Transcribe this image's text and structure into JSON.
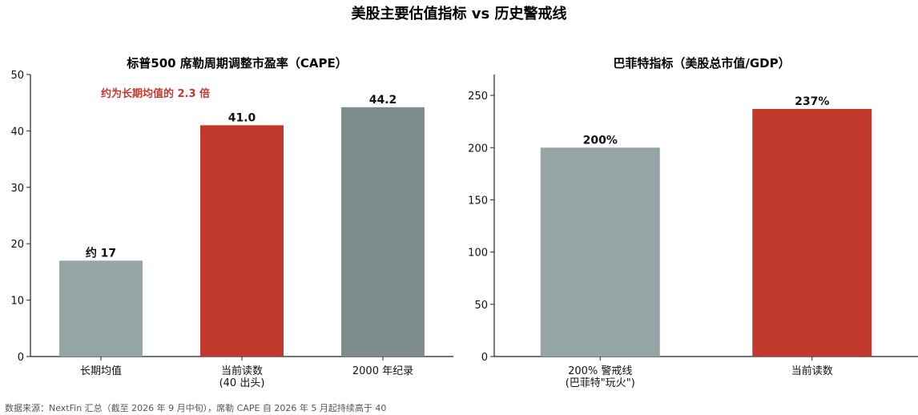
{
  "suptitle": "美股主要估值指标 vs 历史警戒线",
  "footer": "数据来源：NextFin 汇总（截至 2026 年 9 月中旬），席勒 CAPE 自 2026 年 5 月起持续高于 40",
  "chart_data": [
    {
      "type": "bar",
      "title": "标普500 席勒周期调整市盈率（CAPE）",
      "categories": [
        [
          "长期均值"
        ],
        [
          "当前读数",
          "(40 出头)"
        ],
        [
          "2000 年纪录"
        ]
      ],
      "values": [
        17,
        41.0,
        44.2
      ],
      "value_labels": [
        "约 17",
        "41.0",
        "44.2"
      ],
      "colors": [
        "#95a5a6",
        "#c0392b",
        "#7f8c8d"
      ],
      "ylim": [
        0,
        50
      ],
      "yticks": [
        0,
        10,
        20,
        30,
        40,
        50
      ],
      "annotation": {
        "text": "约为长期均值的 2.3 倍",
        "color": "#c0392b"
      }
    },
    {
      "type": "bar",
      "title": "巴菲特指标（美股总市值/GDP）",
      "categories": [
        [
          "200% 警戒线",
          "(巴菲特\"玩火\")"
        ],
        [
          "当前读数"
        ]
      ],
      "values": [
        200,
        237
      ],
      "value_labels": [
        "200%",
        "237%"
      ],
      "colors": [
        "#95a5a6",
        "#c0392b"
      ],
      "ylim": [
        0,
        270
      ],
      "yticks": [
        0,
        50,
        100,
        150,
        200,
        250
      ]
    }
  ]
}
